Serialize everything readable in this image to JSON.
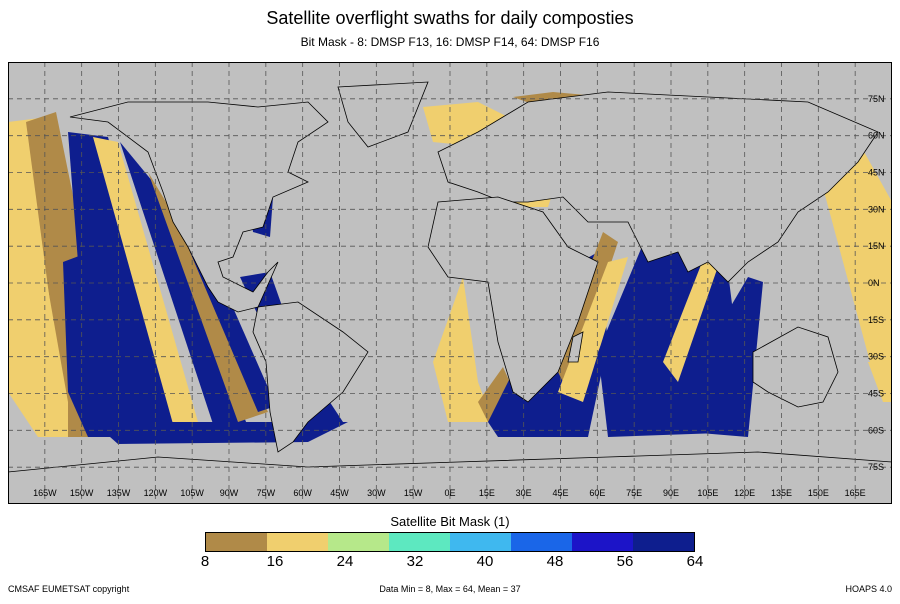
{
  "title": "Satellite overflight swaths for daily composties",
  "subtitle": "Bit Mask - 8: DMSP F13, 16: DMSP F14, 64: DMSP F16",
  "map": {
    "lon_labels": [
      "165W",
      "150W",
      "135W",
      "120W",
      "105W",
      "90W",
      "75W",
      "60W",
      "45W",
      "30W",
      "15W",
      "0E",
      "15E",
      "30E",
      "45E",
      "60E",
      "75E",
      "90E",
      "105E",
      "120E",
      "135E",
      "150E",
      "165E"
    ],
    "lat_labels": [
      "75N",
      "60N",
      "45N",
      "30N",
      "15N",
      "0N",
      "15S",
      "30S",
      "45S",
      "60S",
      "75S"
    ],
    "lon_range": [
      -180,
      180
    ],
    "lat_range": [
      -90,
      90
    ],
    "colors": {
      "background": "#c0c0c0",
      "f13_swath": "#b08a48",
      "f14_swath": "#f0cf6e",
      "f16_swath": "#0e1e8e",
      "grid": "#555555",
      "coast": "#000000"
    }
  },
  "colorbar": {
    "title": "Satellite Bit Mask (1)",
    "ticks": [
      "8",
      "16",
      "24",
      "32",
      "40",
      "48",
      "56",
      "64"
    ],
    "colors": [
      "#b08a48",
      "#f0cf6e",
      "#b6e88a",
      "#5de8c0",
      "#3fb8ef",
      "#1a66e8",
      "#1c14c8",
      "#0e1e8e"
    ]
  },
  "footer": {
    "left": "CMSAF EUMETSAT copyright",
    "center": "Data Min = 8, Max = 64, Mean = 37",
    "right": "HOAPS 4.0"
  }
}
